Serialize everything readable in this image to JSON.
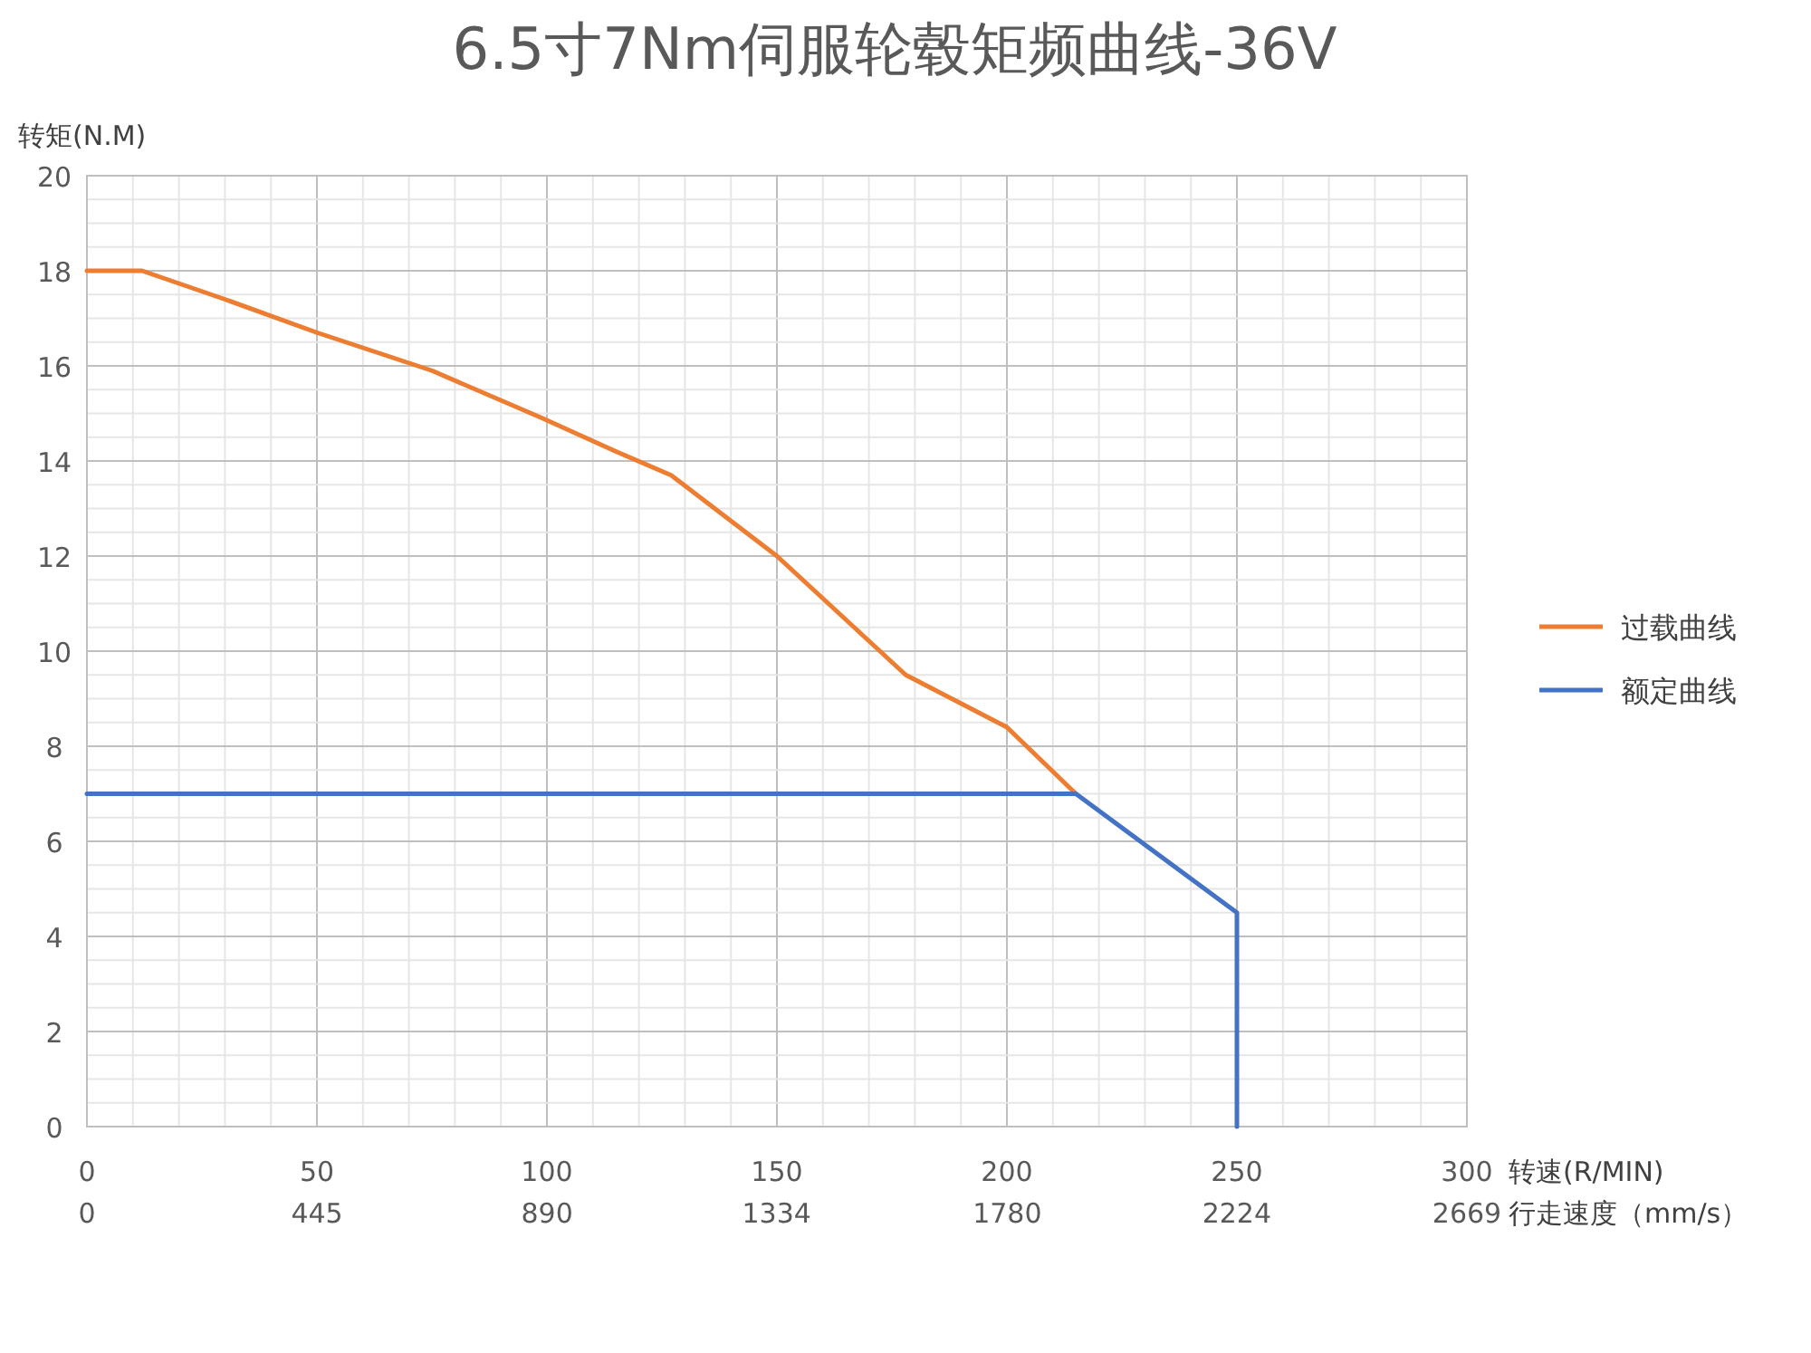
{
  "chart_data": {
    "type": "line",
    "title": "6.5寸7Nm伺服轮毂矩频曲线-36V",
    "xlabel": "转速(R/MIN)",
    "x2label": "行走速度（mm/s）",
    "ylabel": "转矩(N.M)",
    "xlim": [
      0,
      300
    ],
    "xticks": [
      0,
      50,
      100,
      150,
      200,
      250,
      300
    ],
    "ylim": [
      0,
      20
    ],
    "yticks": [
      0,
      2,
      4,
      6,
      8,
      10,
      12,
      14,
      16,
      18,
      20
    ],
    "x2lim": [
      0,
      2669
    ],
    "x2ticks": [
      0,
      445,
      890,
      1334,
      1780,
      2224,
      2669
    ],
    "grid": true,
    "legend": "right",
    "line_style": "solid",
    "marker": "none",
    "series": [
      {
        "name": "过载曲线",
        "color": "#ed7d31",
        "x": [
          0,
          12,
          30,
          50,
          75,
          99,
          115,
          127,
          150,
          178,
          200,
          215
        ],
        "values": [
          18,
          18,
          17.4,
          16.7,
          15.9,
          14.9,
          14.2,
          13.7,
          12,
          9.5,
          8.4,
          7
        ]
      },
      {
        "name": "额定曲线",
        "color": "#4472c4",
        "x": [
          0,
          215,
          250,
          250
        ],
        "values": [
          7,
          7,
          4.5,
          0
        ]
      }
    ]
  }
}
